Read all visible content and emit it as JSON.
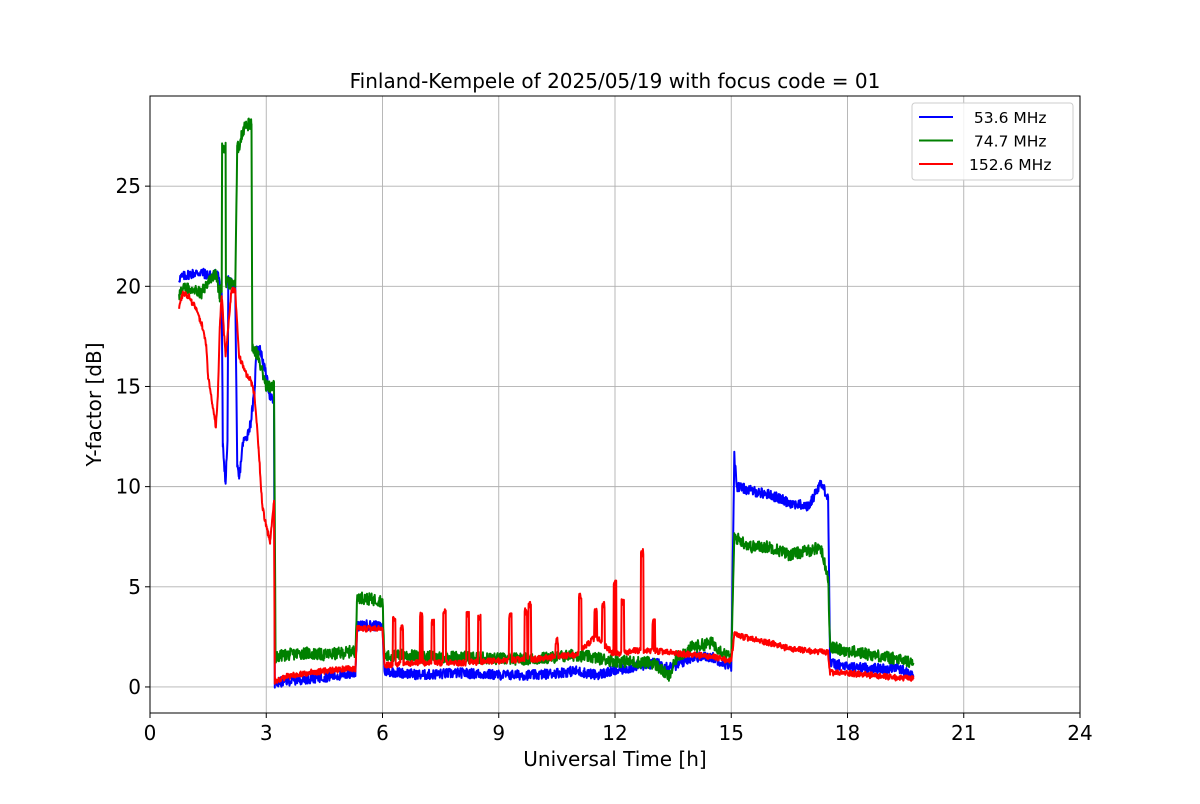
{
  "chart_data": {
    "type": "line",
    "title": "Finland-Kempele of 2025/05/19 with focus code = 01",
    "xlabel": "Universal Time [h]",
    "ylabel": "Y-factor [dB]",
    "xlim": [
      0,
      24
    ],
    "ylim": [
      -1.3,
      29.5
    ],
    "xticks": [
      0,
      3,
      6,
      9,
      12,
      15,
      18,
      21,
      24
    ],
    "xtick_labels": [
      "0",
      "3",
      "6",
      "9",
      "12",
      "15",
      "18",
      "21",
      "24"
    ],
    "yticks": [
      0,
      5,
      10,
      15,
      20,
      25
    ],
    "ytick_labels": [
      "0",
      "5",
      "10",
      "15",
      "20",
      "25"
    ],
    "grid": true,
    "legend_position": "top-right",
    "series": [
      {
        "name": " 53.6 MHz",
        "color": "#0000ff",
        "noise": 0.25,
        "points": [
          [
            0.75,
            20.4
          ],
          [
            1.0,
            20.6
          ],
          [
            1.3,
            20.7
          ],
          [
            1.6,
            20.5
          ],
          [
            1.75,
            20.7
          ],
          [
            1.85,
            19.5
          ],
          [
            1.88,
            12.0
          ],
          [
            1.95,
            10.2
          ],
          [
            2.0,
            12.3
          ],
          [
            2.02,
            20.3
          ],
          [
            2.2,
            20.0
          ],
          [
            2.25,
            11.0
          ],
          [
            2.3,
            10.4
          ],
          [
            2.4,
            12.2
          ],
          [
            2.5,
            12.5
          ],
          [
            2.6,
            13.2
          ],
          [
            2.7,
            14.8
          ],
          [
            2.75,
            17.0
          ],
          [
            2.85,
            16.8
          ],
          [
            3.0,
            15.5
          ],
          [
            3.1,
            14.5
          ],
          [
            3.2,
            14.2
          ],
          [
            3.22,
            0.1
          ],
          [
            3.3,
            0.2
          ],
          [
            3.5,
            0.3
          ],
          [
            4.0,
            0.4
          ],
          [
            4.5,
            0.5
          ],
          [
            5.0,
            0.6
          ],
          [
            5.3,
            0.7
          ],
          [
            5.35,
            3.0
          ],
          [
            5.6,
            3.1
          ],
          [
            6.0,
            3.0
          ],
          [
            6.05,
            0.8
          ],
          [
            6.5,
            0.7
          ],
          [
            7.0,
            0.6
          ],
          [
            8.0,
            0.7
          ],
          [
            9.0,
            0.6
          ],
          [
            10.0,
            0.6
          ],
          [
            11.0,
            0.8
          ],
          [
            11.5,
            0.6
          ],
          [
            12.0,
            0.8
          ],
          [
            12.5,
            1.0
          ],
          [
            13.0,
            1.2
          ],
          [
            13.5,
            1.0
          ],
          [
            14.0,
            1.5
          ],
          [
            14.5,
            1.5
          ],
          [
            15.0,
            1.0
          ],
          [
            15.08,
            11.6
          ],
          [
            15.15,
            10.0
          ],
          [
            15.5,
            9.8
          ],
          [
            16.0,
            9.6
          ],
          [
            16.5,
            9.2
          ],
          [
            17.0,
            9.0
          ],
          [
            17.3,
            10.2
          ],
          [
            17.5,
            9.5
          ],
          [
            17.55,
            1.2
          ],
          [
            18.0,
            1.0
          ],
          [
            19.0,
            0.9
          ],
          [
            19.3,
            1.0
          ],
          [
            19.7,
            0.5
          ]
        ]
      },
      {
        "name": " 74.7 MHz",
        "color": "#008000",
        "noise": 0.3,
        "points": [
          [
            0.75,
            19.6
          ],
          [
            0.9,
            19.9
          ],
          [
            1.2,
            19.9
          ],
          [
            1.3,
            19.6
          ],
          [
            1.5,
            20.2
          ],
          [
            1.7,
            20.7
          ],
          [
            1.8,
            19.5
          ],
          [
            1.85,
            20.0
          ],
          [
            1.86,
            26.9
          ],
          [
            1.95,
            26.9
          ],
          [
            1.96,
            20.2
          ],
          [
            2.2,
            20.0
          ],
          [
            2.25,
            26.9
          ],
          [
            2.3,
            27.0
          ],
          [
            2.4,
            27.8
          ],
          [
            2.55,
            28.1
          ],
          [
            2.62,
            28.1
          ],
          [
            2.64,
            17.0
          ],
          [
            2.8,
            16.5
          ],
          [
            3.0,
            15.0
          ],
          [
            3.2,
            15.0
          ],
          [
            3.24,
            1.5
          ],
          [
            3.5,
            1.6
          ],
          [
            4.0,
            1.7
          ],
          [
            4.5,
            1.6
          ],
          [
            5.0,
            1.7
          ],
          [
            5.3,
            1.8
          ],
          [
            5.35,
            4.5
          ],
          [
            5.6,
            4.4
          ],
          [
            6.0,
            4.3
          ],
          [
            6.05,
            1.5
          ],
          [
            6.5,
            1.6
          ],
          [
            7.0,
            1.5
          ],
          [
            8.0,
            1.5
          ],
          [
            9.0,
            1.4
          ],
          [
            10.0,
            1.4
          ],
          [
            11.0,
            1.6
          ],
          [
            12.0,
            1.3
          ],
          [
            13.0,
            1.2
          ],
          [
            13.4,
            0.5
          ],
          [
            13.6,
            1.5
          ],
          [
            14.0,
            2.0
          ],
          [
            14.5,
            2.2
          ],
          [
            15.0,
            1.4
          ],
          [
            15.08,
            7.5
          ],
          [
            15.5,
            7.0
          ],
          [
            16.0,
            7.0
          ],
          [
            16.5,
            6.6
          ],
          [
            17.0,
            6.8
          ],
          [
            17.3,
            7.0
          ],
          [
            17.5,
            5.5
          ],
          [
            17.55,
            2.0
          ],
          [
            18.0,
            1.8
          ],
          [
            19.0,
            1.5
          ],
          [
            19.7,
            1.2
          ]
        ]
      },
      {
        "name": "152.6 MHz",
        "color": "#ff0000",
        "noise": 0.15,
        "points": [
          [
            0.75,
            18.8
          ],
          [
            0.85,
            19.7
          ],
          [
            1.0,
            19.5
          ],
          [
            1.2,
            18.8
          ],
          [
            1.35,
            18.0
          ],
          [
            1.45,
            17.0
          ],
          [
            1.5,
            15.5
          ],
          [
            1.6,
            14.2
          ],
          [
            1.7,
            13.0
          ],
          [
            1.75,
            14.5
          ],
          [
            1.8,
            18.0
          ],
          [
            1.85,
            19.5
          ],
          [
            1.95,
            16.5
          ],
          [
            2.1,
            19.8
          ],
          [
            2.2,
            19.8
          ],
          [
            2.3,
            16.5
          ],
          [
            2.5,
            15.5
          ],
          [
            2.6,
            15.3
          ],
          [
            2.7,
            14.5
          ],
          [
            2.8,
            12.0
          ],
          [
            2.9,
            9.0
          ],
          [
            3.0,
            8.0
          ],
          [
            3.1,
            7.3
          ],
          [
            3.2,
            9.3
          ],
          [
            3.22,
            0.3
          ],
          [
            3.5,
            0.5
          ],
          [
            4.0,
            0.7
          ],
          [
            4.5,
            0.8
          ],
          [
            5.0,
            0.9
          ],
          [
            5.3,
            0.9
          ],
          [
            5.35,
            2.9
          ],
          [
            6.0,
            2.9
          ],
          [
            6.05,
            1.1
          ],
          [
            7.0,
            1.2
          ],
          [
            8.0,
            1.2
          ],
          [
            9.0,
            1.3
          ],
          [
            10.0,
            1.4
          ],
          [
            11.0,
            1.6
          ],
          [
            11.5,
            2.5
          ],
          [
            12.0,
            1.6
          ],
          [
            12.5,
            1.8
          ],
          [
            13.0,
            1.8
          ],
          [
            14.0,
            1.6
          ],
          [
            14.5,
            1.5
          ],
          [
            15.0,
            1.3
          ],
          [
            15.08,
            2.6
          ],
          [
            15.5,
            2.4
          ],
          [
            16.0,
            2.2
          ],
          [
            16.5,
            1.9
          ],
          [
            17.0,
            1.8
          ],
          [
            17.5,
            1.7
          ],
          [
            17.55,
            0.7
          ],
          [
            18.0,
            0.7
          ],
          [
            19.0,
            0.5
          ],
          [
            19.7,
            0.4
          ]
        ],
        "spikes": [
          [
            6.3,
            3.7
          ],
          [
            6.5,
            3.2
          ],
          [
            7.0,
            3.8
          ],
          [
            7.3,
            3.5
          ],
          [
            7.6,
            4.0
          ],
          [
            8.2,
            3.8
          ],
          [
            8.5,
            3.7
          ],
          [
            9.3,
            3.8
          ],
          [
            9.7,
            4.0
          ],
          [
            9.8,
            4.3
          ],
          [
            10.5,
            2.5
          ],
          [
            11.1,
            4.8
          ],
          [
            11.5,
            4.0
          ],
          [
            11.7,
            4.3
          ],
          [
            12.0,
            5.5
          ],
          [
            12.2,
            4.5
          ],
          [
            12.7,
            6.9
          ],
          [
            13.0,
            3.5
          ]
        ]
      }
    ]
  }
}
